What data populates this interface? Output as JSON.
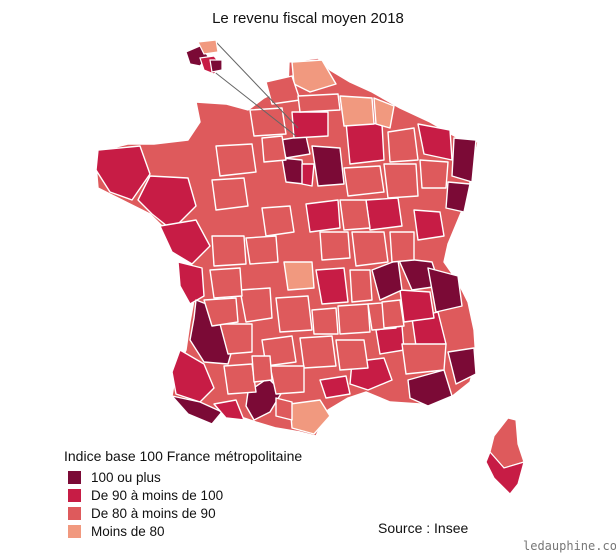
{
  "title": "Le revenu fiscal moyen 2018",
  "legend": {
    "title": "Indice base 100 France métropolitaine",
    "items": [
      {
        "label": "100 ou plus",
        "color": "#7b0a36"
      },
      {
        "label": "De 90 à moins de 100",
        "color": "#c71c45"
      },
      {
        "label": "De 80 à moins de 90",
        "color": "#de5a5c"
      },
      {
        "label": "Moins de 80",
        "color": "#f1997f"
      }
    ]
  },
  "source": "Source : Insee",
  "watermark": "ledauphine.com",
  "colors": {
    "border": "#ffffff",
    "inset_line": "#666666"
  }
}
